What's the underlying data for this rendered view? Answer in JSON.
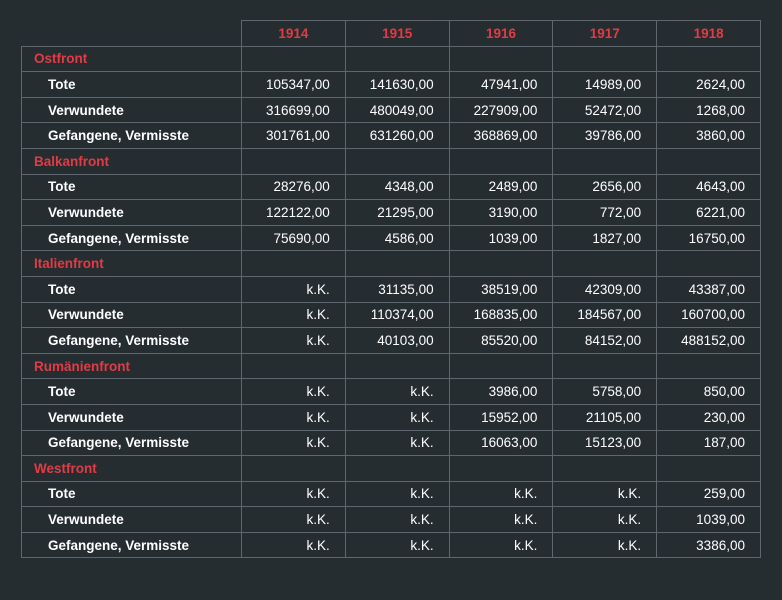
{
  "chart_data": {
    "type": "table",
    "columns": [
      "1914",
      "1915",
      "1916",
      "1917",
      "1918"
    ],
    "groups": [
      {
        "name": "Ostfront",
        "rows": [
          {
            "label": "Tote",
            "values": [
              "105347,00",
              "141630,00",
              "47941,00",
              "14989,00",
              "2624,00"
            ]
          },
          {
            "label": "Verwundete",
            "values": [
              "316699,00",
              "480049,00",
              "227909,00",
              "52472,00",
              "1268,00"
            ]
          },
          {
            "label": "Gefangene, Vermisste",
            "values": [
              "301761,00",
              "631260,00",
              "368869,00",
              "39786,00",
              "3860,00"
            ]
          }
        ]
      },
      {
        "name": "Balkanfront",
        "rows": [
          {
            "label": "Tote",
            "values": [
              "28276,00",
              "4348,00",
              "2489,00",
              "2656,00",
              "4643,00"
            ]
          },
          {
            "label": "Verwundete",
            "values": [
              "122122,00",
              "21295,00",
              "3190,00",
              "772,00",
              "6221,00"
            ]
          },
          {
            "label": "Gefangene, Vermisste",
            "values": [
              "75690,00",
              "4586,00",
              "1039,00",
              "1827,00",
              "16750,00"
            ]
          }
        ]
      },
      {
        "name": "Italienfront",
        "rows": [
          {
            "label": "Tote",
            "values": [
              "k.K.",
              "31135,00",
              "38519,00",
              "42309,00",
              "43387,00"
            ]
          },
          {
            "label": "Verwundete",
            "values": [
              "k.K.",
              "110374,00",
              "168835,00",
              "184567,00",
              "160700,00"
            ]
          },
          {
            "label": "Gefangene, Vermisste",
            "values": [
              "k.K.",
              "40103,00",
              "85520,00",
              "84152,00",
              "488152,00"
            ]
          }
        ]
      },
      {
        "name": "Rumänienfront",
        "rows": [
          {
            "label": "Tote",
            "values": [
              "k.K.",
              "k.K.",
              "3986,00",
              "5758,00",
              "850,00"
            ]
          },
          {
            "label": "Verwundete",
            "values": [
              "k.K.",
              "k.K.",
              "15952,00",
              "21105,00",
              "230,00"
            ]
          },
          {
            "label": "Gefangene, Vermisste",
            "values": [
              "k.K.",
              "k.K.",
              "16063,00",
              "15123,00",
              "187,00"
            ]
          }
        ]
      },
      {
        "name": "Westfront",
        "rows": [
          {
            "label": "Tote",
            "values": [
              "k.K.",
              "k.K.",
              "k.K.",
              "k.K.",
              "259,00"
            ]
          },
          {
            "label": "Verwundete",
            "values": [
              "k.K.",
              "k.K.",
              "k.K.",
              "k.K.",
              "1039,00"
            ]
          },
          {
            "label": "Gefangene, Vermisste",
            "values": [
              "k.K.",
              "k.K.",
              "k.K.",
              "k.K.",
              "3386,00"
            ]
          }
        ]
      }
    ]
  },
  "colors": {
    "background": "#262d31",
    "accent": "#e23b45",
    "grid": "#5f686e",
    "text": "#ffffff"
  }
}
